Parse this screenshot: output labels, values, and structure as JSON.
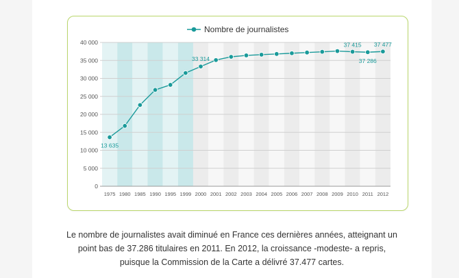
{
  "chart_data": {
    "type": "line",
    "legend": {
      "label": "Nombre de journalistes",
      "position": "top-center"
    },
    "categories": [
      "1975",
      "1980",
      "1985",
      "1990",
      "1995",
      "1999",
      "2000",
      "2001",
      "2002",
      "2003",
      "2004",
      "2005",
      "2006",
      "2007",
      "2008",
      "2009",
      "2010",
      "2011",
      "2012"
    ],
    "series": [
      {
        "name": "Nombre de journalistes",
        "color": "#1a9a9a",
        "values": [
          13635,
          16800,
          22600,
          26800,
          28200,
          31500,
          33314,
          35100,
          36000,
          36400,
          36600,
          36800,
          37000,
          37200,
          37400,
          37600,
          37415,
          37286,
          37477
        ]
      }
    ],
    "data_labels": [
      {
        "index": 0,
        "text": "13 635"
      },
      {
        "index": 6,
        "text": "33 314"
      },
      {
        "index": 16,
        "text": "37 415"
      },
      {
        "index": 17,
        "text": "37 286"
      },
      {
        "index": 18,
        "text": "37 477"
      }
    ],
    "y_ticks": [
      "0",
      "5 000",
      "10 000",
      "15 000",
      "20 000",
      "25 000",
      "30 000",
      "35 000",
      "40 000"
    ],
    "ylim": [
      0,
      40000
    ],
    "grid": true,
    "band_colors": {
      "early_light": "#e3f3f4",
      "early_dark": "#c9e8ea",
      "late_light": "#f7f7f7",
      "late_dark": "#ececec"
    }
  },
  "caption": {
    "line1": "Le nombre de journalistes avait diminué en France ces dernières années, atteignant un",
    "line2": "point bas de 37.286 titulaires en 2011. En 2012, la croissance -modeste- a repris,",
    "line3": "puisque la Commission de la Carte a délivré 37.477 cartes."
  }
}
